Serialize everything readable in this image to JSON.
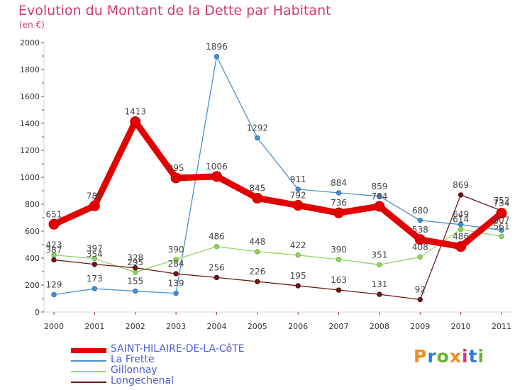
{
  "title": "Evolution du Montant de la Dette par Habitant",
  "subtitle": "(en €)",
  "logo": {
    "text": "Proxiti",
    "colors": [
      "#f28b1f",
      "#2a7fd4",
      "#69b42b",
      "#f28b1f",
      "#d13b6e",
      "#2a7fd4",
      "#69b42b"
    ]
  },
  "chart_data": {
    "type": "line",
    "title": "Evolution du Montant de la Dette par Habitant",
    "subtitle": "(en €)",
    "x": [
      "2000",
      "2001",
      "2002",
      "2003",
      "2004",
      "2005",
      "2006",
      "2007",
      "2008",
      "2009",
      "2010",
      "2011"
    ],
    "ylim": [
      0,
      2000
    ],
    "yticks": [
      0,
      200,
      400,
      600,
      800,
      1000,
      1200,
      1400,
      1600,
      1800,
      2000
    ],
    "grid": false,
    "legend_position": "bottom-left",
    "series": [
      {
        "name": "SAINT-HILAIRE-DE-LA-CôTE",
        "color": "#e30000",
        "values": [
          651,
          788,
          1413,
          995,
          1006,
          845,
          792,
          736,
          784,
          538,
          486,
          734
        ]
      },
      {
        "name": "La Frette",
        "color": "#4c8fce",
        "values": [
          129,
          173,
          155,
          139,
          1896,
          1292,
          911,
          884,
          859,
          680,
          649,
          607
        ]
      },
      {
        "name": "Gillonnay",
        "color": "#92d462",
        "values": [
          423,
          397,
          295,
          390,
          486,
          448,
          422,
          390,
          351,
          408,
          614,
          561
        ]
      },
      {
        "name": "Longechenal",
        "color": "#6b1a1a",
        "values": [
          387,
          354,
          328,
          284,
          256,
          226,
          195,
          163,
          131,
          92,
          869,
          752
        ]
      }
    ]
  }
}
